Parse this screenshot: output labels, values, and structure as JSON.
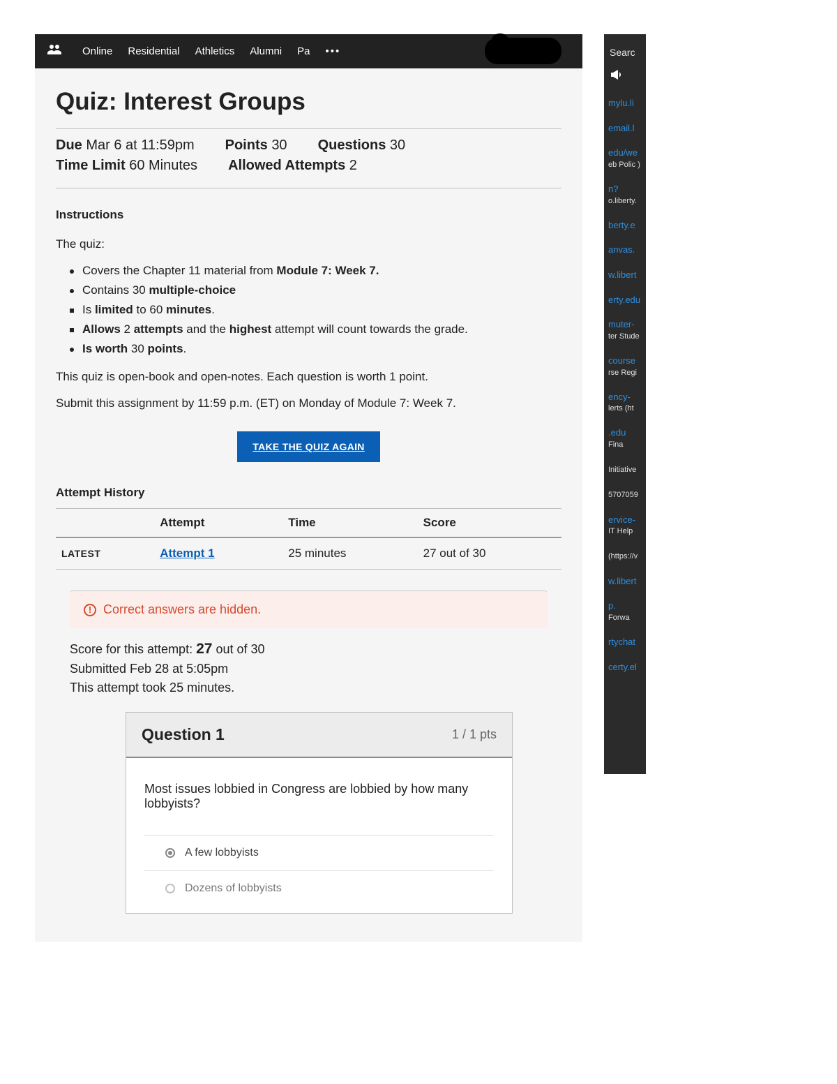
{
  "nav": {
    "links": [
      "Online",
      "Residential",
      "Athletics",
      "Alumni",
      "Pa"
    ],
    "more": "•••"
  },
  "quiz": {
    "title": "Quiz: Interest Groups",
    "meta": {
      "due_label": "Due",
      "due_value": "Mar 6 at 11:59pm",
      "points_label": "Points",
      "points_value": "30",
      "questions_label": "Questions",
      "questions_value": "30",
      "time_limit_label": "Time Limit",
      "time_limit_value": "60 Minutes",
      "allowed_label": "Allowed Attempts",
      "allowed_value": "2"
    },
    "instructions_heading": "Instructions",
    "intro": "The quiz:",
    "bullets": [
      {
        "html": "Covers the Chapter 11 material from <strong>Module 7: Week 7.</strong>",
        "marker": "dot"
      },
      {
        "html": "Contains 30 <strong>multiple-choice</strong>",
        "marker": "dot"
      },
      {
        "html": "Is <strong>limited</strong> to 60 <strong>minutes</strong>.",
        "marker": "sq"
      },
      {
        "html": "<strong>Allows</strong> 2 <strong>attempts</strong> and the <strong>highest</strong> attempt will count towards the grade.",
        "marker": "sq"
      },
      {
        "html": "<strong>Is worth</strong> 30 <strong>points</strong>.",
        "marker": "dot"
      }
    ],
    "body_p1": "This quiz is open-book and open-notes.  Each question is worth 1 point.",
    "body_p2": "Submit this assignment by 11:59 p.m. (ET) on Monday of Module 7: Week 7.",
    "take_button": "TAKE THE QUIZ AGAIN"
  },
  "history": {
    "heading": "Attempt History",
    "columns": [
      "",
      "Attempt",
      "Time",
      "Score"
    ],
    "rows": [
      {
        "tag": "LATEST",
        "attempt": "Attempt 1",
        "time": "25 minutes",
        "score": "27 out of 30"
      }
    ]
  },
  "result": {
    "hidden_text": "Correct answers are hidden.",
    "score_line_prefix": "Score for this attempt: ",
    "score_value": "27",
    "score_line_suffix": " out of 30",
    "submitted": "Submitted Feb 28 at 5:05pm",
    "took": "This attempt took 25 minutes."
  },
  "question": {
    "title": "Question 1",
    "pts": "1 / 1 pts",
    "text": "Most issues lobbied in Congress are lobbied by how many lobbyists?",
    "answers": [
      {
        "label": "A few lobbyists",
        "selected": true
      },
      {
        "label": "Dozens of lobbyists",
        "selected": false
      }
    ]
  },
  "sidebar": {
    "search": "Searc",
    "items": [
      {
        "link": "mylu.li",
        "sub": ""
      },
      {
        "link": "email.l",
        "sub": ""
      },
      {
        "link": "edu/we",
        "sub": "eb Polic )"
      },
      {
        "link": "n?",
        "sub": "o.liberty."
      },
      {
        "link": "berty.e",
        "sub": ""
      },
      {
        "link": "anvas.",
        "sub": ""
      },
      {
        "link": "w.libert",
        "sub": ""
      },
      {
        "link": "erty.edu",
        "sub": ""
      },
      {
        "link": "muter-",
        "sub": "ter Stude"
      },
      {
        "link": "course",
        "sub": "rse Regi"
      },
      {
        "link": "ency-",
        "sub": "lerts (ht"
      },
      {
        "link": ".edu",
        "sub": "Fina"
      },
      {
        "link": "",
        "sub": "Initiative"
      },
      {
        "link": "",
        "sub": "5707059"
      },
      {
        "link": "ervice-",
        "sub": "IT Help"
      },
      {
        "link": "",
        "sub": "(https://v"
      },
      {
        "link": "w.libert",
        "sub": ""
      },
      {
        "link": "p.",
        "sub": "Forwa"
      },
      {
        "link": "rtychat",
        "sub": ""
      },
      {
        "link": "certy.el",
        "sub": ""
      }
    ]
  },
  "colors": {
    "nav_bg": "#222222",
    "page_bg": "#f5f5f5",
    "accent_blue": "#0b5fb4",
    "link_blue": "#2f8fe0",
    "warning_bg": "#fceeeb",
    "warning_fg": "#d64b2f",
    "border": "#bfbfbf"
  }
}
